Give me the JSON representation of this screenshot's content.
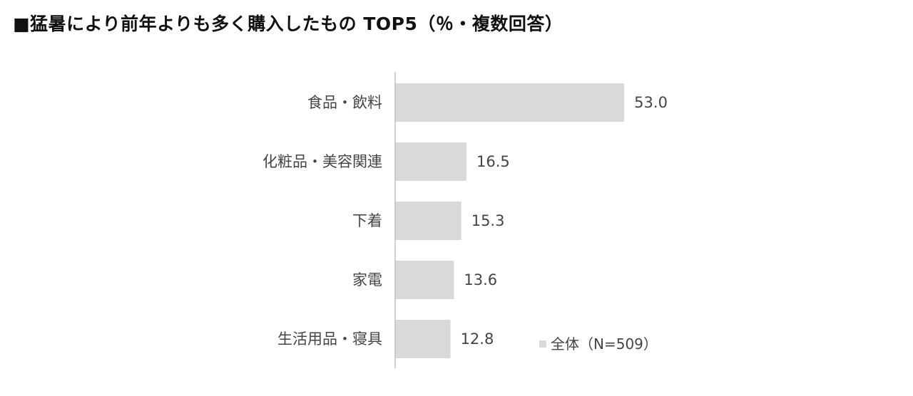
{
  "chart_data": {
    "type": "bar",
    "orientation": "horizontal",
    "title": "■猛暑により前年よりも多く購入したもの TOP5（％・複数回答）",
    "categories": [
      "食品・飲料",
      "化粧品・美容関連",
      "下着",
      "家電",
      "生活用品・寝具"
    ],
    "series": [
      {
        "name": "全体（N=509）",
        "values": [
          53.0,
          16.5,
          15.3,
          13.6,
          12.8
        ],
        "color": "#d9d9d9"
      }
    ],
    "value_labels": [
      "53.0",
      "16.5",
      "15.3",
      "13.6",
      "12.8"
    ],
    "xlim": [
      0,
      100
    ],
    "grid": false,
    "legend_position": "bottom-right",
    "axis_color": "#bfbfbf"
  }
}
